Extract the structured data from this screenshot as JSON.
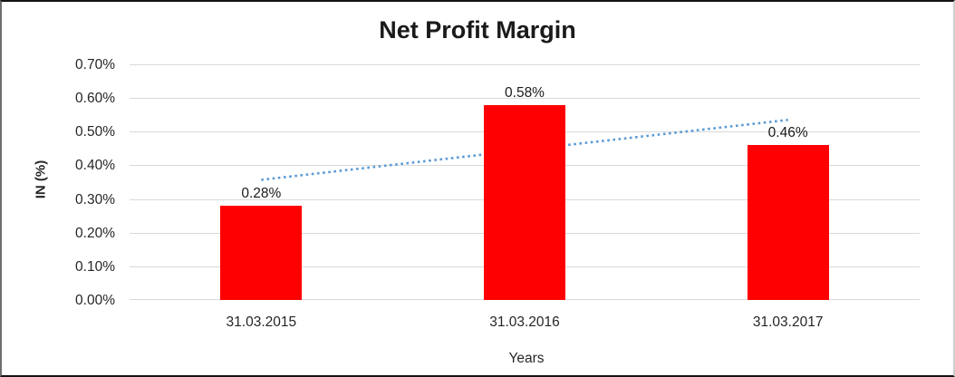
{
  "chart_data": {
    "type": "bar",
    "title": "Net Profit Margin",
    "categories": [
      "31.03.2015",
      "31.03.2016",
      "31.03.2017"
    ],
    "values": [
      0.28,
      0.58,
      0.46
    ],
    "value_labels": [
      "0.28%",
      "0.58%",
      "0.46%"
    ],
    "xlabel": "Years",
    "ylabel": "IN (%)",
    "unit": "%",
    "ylim": [
      0,
      0.7
    ],
    "ytick_step": 0.1,
    "ytick_labels": [
      "0.00%",
      "0.10%",
      "0.20%",
      "0.30%",
      "0.40%",
      "0.50%",
      "0.60%",
      "0.70%"
    ],
    "grid": true,
    "legend": "none",
    "colors": {
      "bar": "#FF0000",
      "grid": "#D9D9D9",
      "axis_text": "#262626",
      "title_text": "#1A1A1A",
      "trendline": "#5B9BD5"
    },
    "trendline": {
      "type": "linear",
      "line_style": "dotted",
      "start_value": 0.357,
      "end_value": 0.535
    }
  }
}
